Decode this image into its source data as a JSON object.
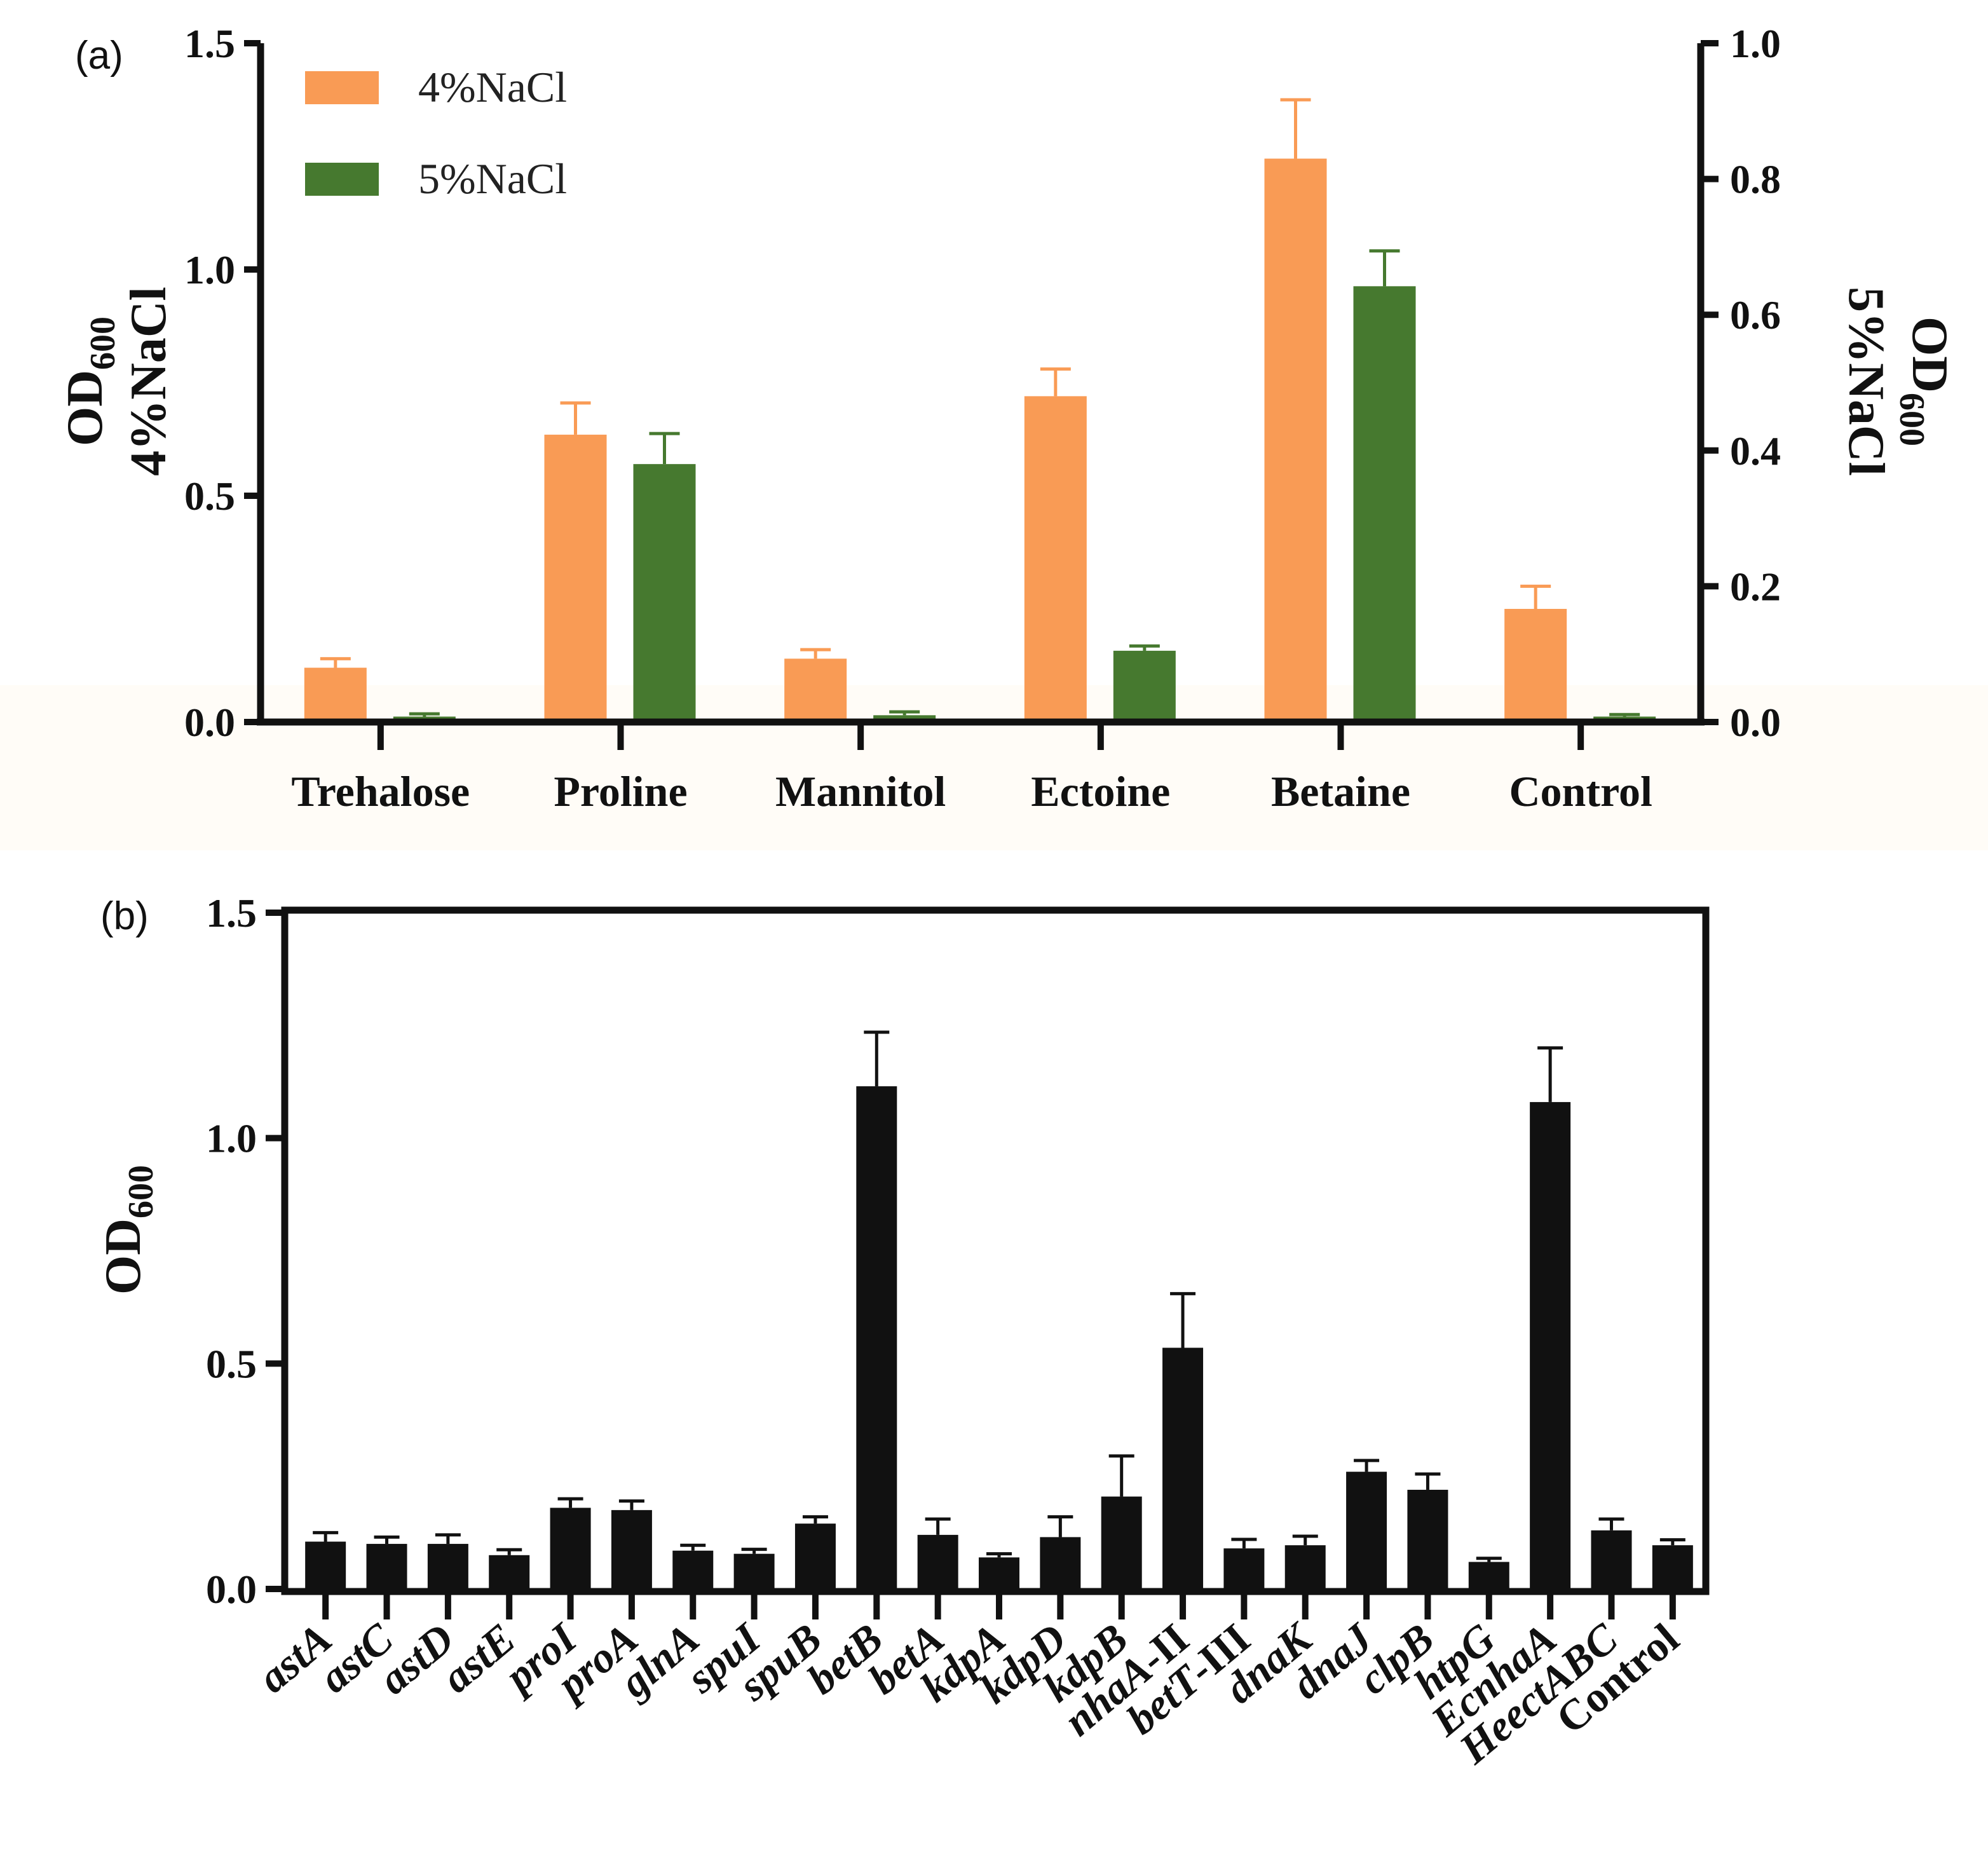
{
  "chart_data": [
    {
      "type": "bar",
      "panel_label": "(a)",
      "categories": [
        "Trehalose",
        "Proline",
        "Mannitol",
        "Ectoine",
        "Betaine",
        "Control"
      ],
      "series": [
        {
          "name": "4%NaCl",
          "axis": "left",
          "color": "#F99B55",
          "values": [
            0.12,
            0.635,
            0.14,
            0.72,
            1.245,
            0.25
          ],
          "errors": [
            0.02,
            0.07,
            0.02,
            0.06,
            0.13,
            0.05
          ]
        },
        {
          "name": "5%NaCl",
          "axis": "right",
          "color": "#46792F",
          "values": [
            0.008,
            0.38,
            0.01,
            0.105,
            0.642,
            0.008
          ],
          "errors": [
            0.004,
            0.045,
            0.005,
            0.007,
            0.052,
            0.003
          ]
        }
      ],
      "left_axis": {
        "title_main": "OD",
        "title_sub": "600",
        "title_line2": "4%NaCl",
        "ylim": [
          0,
          1.5
        ],
        "ticks": [
          "0.0",
          "0.5",
          "1.0",
          "1.5"
        ]
      },
      "right_axis": {
        "title_main": "OD",
        "title_sub": "600",
        "title_line2": "5%NaCl",
        "ylim": [
          0,
          1.0
        ],
        "ticks": [
          "0.0",
          "0.2",
          "0.4",
          "0.6",
          "0.8",
          "1.0"
        ]
      },
      "legend_position": "top-left",
      "grid": false
    },
    {
      "type": "bar",
      "panel_label": "(b)",
      "categories": [
        "astA",
        "astC",
        "astD",
        "astE",
        "proI",
        "proA",
        "glnA",
        "spuI",
        "spuB",
        "betB",
        "betA",
        "kdpA",
        "kdpD",
        "kdpB",
        "nhaA-II",
        "betT-III",
        "dnaK",
        "dnaJ",
        "clpB",
        "htpG",
        "EcnhaA",
        "HeectABC",
        "Control"
      ],
      "category_style": [
        [
          [
            "astA",
            true
          ]
        ],
        [
          [
            "astC",
            true
          ]
        ],
        [
          [
            "astD",
            true
          ]
        ],
        [
          [
            "astE",
            true
          ]
        ],
        [
          [
            "proI",
            true
          ]
        ],
        [
          [
            "proA",
            true
          ]
        ],
        [
          [
            "glnA",
            true
          ]
        ],
        [
          [
            "spuI",
            true
          ]
        ],
        [
          [
            "spuB",
            true
          ]
        ],
        [
          [
            "betB",
            true
          ]
        ],
        [
          [
            "betA",
            true
          ]
        ],
        [
          [
            "kdpA",
            true
          ]
        ],
        [
          [
            "kdpD",
            true
          ]
        ],
        [
          [
            "kdpB",
            true
          ]
        ],
        [
          [
            "nhaA",
            true
          ],
          [
            "-II",
            false
          ]
        ],
        [
          [
            "betT",
            true
          ],
          [
            "-III",
            false
          ]
        ],
        [
          [
            "dnaK",
            true
          ]
        ],
        [
          [
            "dnaJ",
            true
          ]
        ],
        [
          [
            "clpB",
            true
          ]
        ],
        [
          [
            "htpG",
            true
          ]
        ],
        [
          [
            "EcnhaA",
            true
          ]
        ],
        [
          [
            "HeectABC",
            true
          ]
        ],
        [
          [
            "Control",
            false
          ]
        ]
      ],
      "series": [
        {
          "name": "OD600",
          "color": "#111111",
          "values": [
            0.105,
            0.1,
            0.1,
            0.075,
            0.18,
            0.175,
            0.085,
            0.078,
            0.145,
            1.115,
            0.12,
            0.07,
            0.115,
            0.205,
            0.535,
            0.09,
            0.097,
            0.26,
            0.22,
            0.06,
            1.08,
            0.13,
            0.097
          ],
          "errors": [
            0.02,
            0.015,
            0.02,
            0.012,
            0.02,
            0.02,
            0.012,
            0.01,
            0.015,
            0.12,
            0.035,
            0.008,
            0.045,
            0.09,
            0.12,
            0.02,
            0.02,
            0.025,
            0.035,
            0.008,
            0.12,
            0.025,
            0.012
          ]
        }
      ],
      "y_axis": {
        "title_main": "OD",
        "title_sub": "600",
        "ylim": [
          0,
          1.5
        ],
        "ticks": [
          "0.0",
          "0.5",
          "1.0",
          "1.5"
        ]
      },
      "grid": false
    }
  ]
}
